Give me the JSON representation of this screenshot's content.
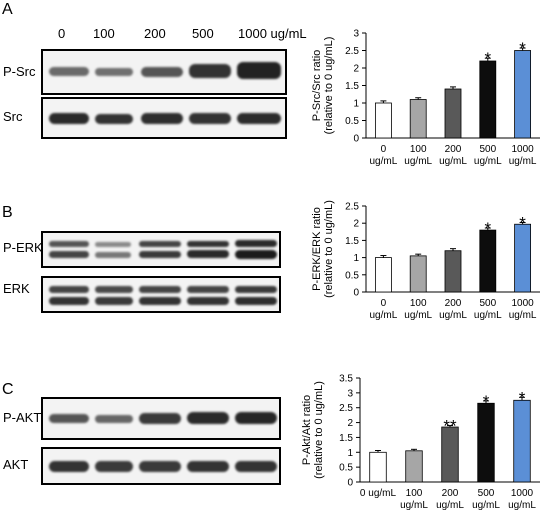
{
  "figure": {
    "concentrations": [
      "0",
      "100",
      "200",
      "500",
      "1000 ug/mL"
    ],
    "panels": [
      {
        "letter": "A",
        "blots": [
          {
            "label": "P-Src"
          },
          {
            "label": "Src"
          }
        ]
      },
      {
        "letter": "B",
        "blots": [
          {
            "label": "P-ERK"
          },
          {
            "label": "ERK"
          }
        ]
      },
      {
        "letter": "C",
        "blots": [
          {
            "label": "P-AKT"
          },
          {
            "label": "AKT"
          }
        ]
      }
    ]
  },
  "chart_data": [
    {
      "type": "bar",
      "ylabel": [
        "P-Src/Src ratio",
        "(relative to 0 ug/mL)"
      ],
      "categories": [
        [
          "0",
          "ug/mL"
        ],
        [
          "100",
          "ug/mL"
        ],
        [
          "200",
          "ug/mL"
        ],
        [
          "500",
          "ug/mL"
        ],
        [
          "1000",
          "ug/mL"
        ]
      ],
      "values": [
        1.0,
        1.1,
        1.4,
        2.2,
        2.5
      ],
      "errors": [
        0.06,
        0.05,
        0.06,
        0.08,
        0.07
      ],
      "significance": [
        "",
        "",
        "",
        "*",
        "*"
      ],
      "colors": [
        "#ffffff",
        "#a6a6a6",
        "#595959",
        "#0d0d0d",
        "#5b8fd6"
      ],
      "ylim": [
        0,
        3
      ],
      "yticks": [
        "0",
        "0.5",
        "1",
        "1.5",
        "2",
        "2.5",
        "3"
      ]
    },
    {
      "type": "bar",
      "ylabel": [
        "P-ERK/ERK ratio",
        "(relative to 0 ug/mL)"
      ],
      "categories": [
        [
          "0",
          "ug/mL"
        ],
        [
          "100",
          "ug/mL"
        ],
        [
          "200",
          "ug/mL"
        ],
        [
          "500",
          "ug/mL"
        ],
        [
          "1000",
          "ug/mL"
        ]
      ],
      "values": [
        1.0,
        1.05,
        1.2,
        1.8,
        1.97
      ],
      "errors": [
        0.06,
        0.05,
        0.06,
        0.06,
        0.05
      ],
      "significance": [
        "",
        "",
        "",
        "*",
        "*"
      ],
      "colors": [
        "#ffffff",
        "#a6a6a6",
        "#595959",
        "#0d0d0d",
        "#5b8fd6"
      ],
      "ylim": [
        0,
        2.5
      ],
      "yticks": [
        "0",
        "0.5",
        "1",
        "1.5",
        "2",
        "2.5"
      ]
    },
    {
      "type": "bar",
      "ylabel": [
        "P-Akt/Akt ratio",
        "(relative to 0 ug/mL)"
      ],
      "categories": [
        [
          "0 ug/mL"
        ],
        [
          "100",
          "ug/mL"
        ],
        [
          "200",
          "ug/mL"
        ],
        [
          "500",
          "ug/mL"
        ],
        [
          "1000",
          "ug/mL"
        ]
      ],
      "values": [
        1.0,
        1.05,
        1.85,
        2.65,
        2.75
      ],
      "errors": [
        0.06,
        0.05,
        0.05,
        0.08,
        0.1
      ],
      "significance": [
        "",
        "",
        "**",
        "*",
        "*"
      ],
      "colors": [
        "#ffffff",
        "#a6a6a6",
        "#595959",
        "#0d0d0d",
        "#5b8fd6"
      ],
      "ylim": [
        0,
        3.5
      ],
      "yticks": [
        "0",
        "0.5",
        "1",
        "1.5",
        "2",
        "2.5",
        "3",
        "3.5"
      ]
    }
  ]
}
